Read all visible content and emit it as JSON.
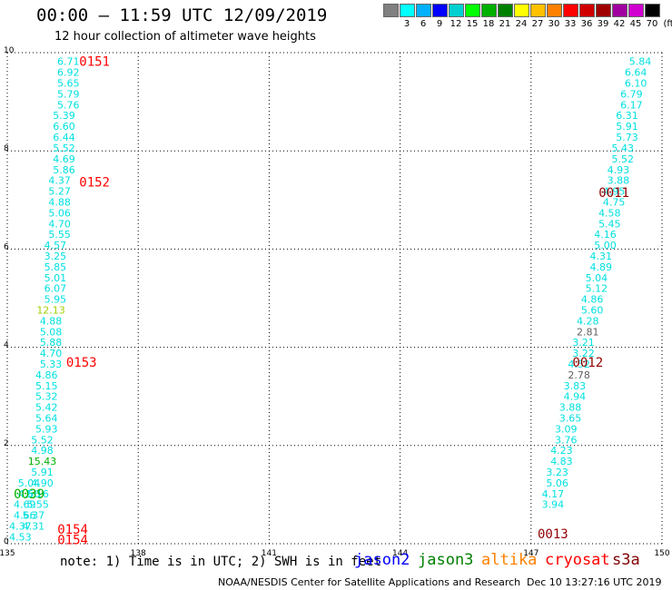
{
  "header": {
    "title": "00:00 – 11:59 UTC 12/09/2019",
    "subtitle": "12 hour collection of altimeter wave heights"
  },
  "color_legend": {
    "unit": "(ft)",
    "bins": [
      {
        "label": "",
        "color": "#808080"
      },
      {
        "label": "3",
        "color": "#00ffff"
      },
      {
        "label": "6",
        "color": "#00b0ff"
      },
      {
        "label": "9",
        "color": "#0000ff"
      },
      {
        "label": "12",
        "color": "#00d0d0"
      },
      {
        "label": "15",
        "color": "#00ff00"
      },
      {
        "label": "18",
        "color": "#00b000"
      },
      {
        "label": "21",
        "color": "#008000"
      },
      {
        "label": "24",
        "color": "#ffff00"
      },
      {
        "label": "27",
        "color": "#ffc000"
      },
      {
        "label": "30",
        "color": "#ff8000"
      },
      {
        "label": "33",
        "color": "#ff0000"
      },
      {
        "label": "36",
        "color": "#d00000"
      },
      {
        "label": "39",
        "color": "#a00000"
      },
      {
        "label": "42",
        "color": "#a000a0"
      },
      {
        "label": "45",
        "color": "#d000d0"
      },
      {
        "label": "70",
        "color": "#000000"
      }
    ]
  },
  "colors": {
    "cyan": "#00e0e0",
    "green": "#00b000",
    "yellowgreen": "#a0d000",
    "gray": "#606060",
    "red": "#ff0000",
    "darkred": "#900000",
    "jason2": "#0000ff",
    "jason3": "#008000",
    "altika": "#ff8000",
    "cryosat": "#ff0000",
    "s3a": "#800000",
    "grid": "#000000"
  },
  "chart_data": {
    "type": "scatter",
    "xlim": [
      135,
      150
    ],
    "ylim": [
      0,
      10
    ],
    "x_ticks": [
      "135",
      "138",
      "141",
      "144",
      "147",
      "150"
    ],
    "y_ticks": [
      "0",
      "2",
      "4",
      "6",
      "8",
      "10"
    ],
    "grid": true,
    "tracks": [
      {
        "time": "0151",
        "color": "red",
        "x": 137.0,
        "y": 9.82
      },
      {
        "time": "0152",
        "color": "red",
        "x": 137.0,
        "y": 7.37
      },
      {
        "time": "0153",
        "color": "red",
        "x": 136.7,
        "y": 3.7
      },
      {
        "time": "0039",
        "color": "green",
        "x": 135.5,
        "y": 1.02
      },
      {
        "time": "0154",
        "color": "red",
        "x": 136.5,
        "y": 0.3
      },
      {
        "time": "0154",
        "color": "red",
        "x": 136.5,
        "y": 0.08
      },
      {
        "time": "0011",
        "color": "darkred",
        "x": 148.9,
        "y": 7.15
      },
      {
        "time": "0012",
        "color": "darkred",
        "x": 148.3,
        "y": 3.7
      },
      {
        "time": "0013",
        "color": "darkred",
        "x": 147.5,
        "y": 0.2
      }
    ],
    "points": [
      {
        "x": 136.4,
        "y": 9.82,
        "v": "6.71",
        "c": "cyan"
      },
      {
        "x": 136.4,
        "y": 9.6,
        "v": "6.92",
        "c": "cyan"
      },
      {
        "x": 136.4,
        "y": 9.38,
        "v": "5.65",
        "c": "cyan"
      },
      {
        "x": 136.4,
        "y": 9.16,
        "v": "5.79",
        "c": "cyan"
      },
      {
        "x": 136.4,
        "y": 8.94,
        "v": "5.76",
        "c": "cyan"
      },
      {
        "x": 136.3,
        "y": 8.72,
        "v": "5.39",
        "c": "cyan"
      },
      {
        "x": 136.3,
        "y": 8.5,
        "v": "6.60",
        "c": "cyan"
      },
      {
        "x": 136.3,
        "y": 8.28,
        "v": "6.44",
        "c": "cyan"
      },
      {
        "x": 136.3,
        "y": 8.06,
        "v": "5.52",
        "c": "cyan"
      },
      {
        "x": 136.3,
        "y": 7.84,
        "v": "4.69",
        "c": "cyan"
      },
      {
        "x": 136.3,
        "y": 7.62,
        "v": "5.86",
        "c": "cyan"
      },
      {
        "x": 136.2,
        "y": 7.4,
        "v": "4.37",
        "c": "cyan"
      },
      {
        "x": 136.2,
        "y": 7.18,
        "v": "5.27",
        "c": "cyan"
      },
      {
        "x": 136.2,
        "y": 6.96,
        "v": "4.88",
        "c": "cyan"
      },
      {
        "x": 136.2,
        "y": 6.74,
        "v": "5.06",
        "c": "cyan"
      },
      {
        "x": 136.2,
        "y": 6.52,
        "v": "4.70",
        "c": "cyan"
      },
      {
        "x": 136.2,
        "y": 6.3,
        "v": "5.55",
        "c": "cyan"
      },
      {
        "x": 136.1,
        "y": 6.08,
        "v": "4.57",
        "c": "cyan"
      },
      {
        "x": 136.1,
        "y": 5.86,
        "v": "3.25",
        "c": "cyan"
      },
      {
        "x": 136.1,
        "y": 5.64,
        "v": "5.85",
        "c": "cyan"
      },
      {
        "x": 136.1,
        "y": 5.42,
        "v": "5.01",
        "c": "cyan"
      },
      {
        "x": 136.1,
        "y": 5.2,
        "v": "6.07",
        "c": "cyan"
      },
      {
        "x": 136.1,
        "y": 4.98,
        "v": "5.95",
        "c": "cyan"
      },
      {
        "x": 136.0,
        "y": 4.76,
        "v": "12.13",
        "c": "yellowgreen"
      },
      {
        "x": 136.0,
        "y": 4.54,
        "v": "4.88",
        "c": "cyan"
      },
      {
        "x": 136.0,
        "y": 4.32,
        "v": "5.08",
        "c": "cyan"
      },
      {
        "x": 136.0,
        "y": 4.1,
        "v": "5.88",
        "c": "cyan"
      },
      {
        "x": 136.0,
        "y": 3.88,
        "v": "4.70",
        "c": "cyan"
      },
      {
        "x": 136.0,
        "y": 3.66,
        "v": "5.33",
        "c": "cyan"
      },
      {
        "x": 135.9,
        "y": 3.44,
        "v": "4.86",
        "c": "cyan"
      },
      {
        "x": 135.9,
        "y": 3.22,
        "v": "5.15",
        "c": "cyan"
      },
      {
        "x": 135.9,
        "y": 3.0,
        "v": "5.32",
        "c": "cyan"
      },
      {
        "x": 135.9,
        "y": 2.78,
        "v": "5.42",
        "c": "cyan"
      },
      {
        "x": 135.9,
        "y": 2.56,
        "v": "5.64",
        "c": "cyan"
      },
      {
        "x": 135.9,
        "y": 2.34,
        "v": "5.93",
        "c": "cyan"
      },
      {
        "x": 135.8,
        "y": 2.12,
        "v": "5.52",
        "c": "cyan"
      },
      {
        "x": 135.8,
        "y": 1.9,
        "v": "4.98",
        "c": "cyan"
      },
      {
        "x": 135.8,
        "y": 1.68,
        "v": "15.43",
        "c": "green"
      },
      {
        "x": 135.8,
        "y": 1.46,
        "v": "5.91",
        "c": "cyan"
      },
      {
        "x": 135.8,
        "y": 1.24,
        "v": "4.90",
        "c": "cyan"
      },
      {
        "x": 135.7,
        "y": 1.02,
        "v": "5.16",
        "c": "cyan"
      },
      {
        "x": 135.7,
        "y": 0.8,
        "v": "5.55",
        "c": "cyan"
      },
      {
        "x": 135.6,
        "y": 0.58,
        "v": "5.37",
        "c": "cyan"
      },
      {
        "x": 135.6,
        "y": 0.36,
        "v": "4.31",
        "c": "cyan"
      },
      {
        "x": 135.5,
        "y": 1.24,
        "v": "5.04",
        "c": "cyan"
      },
      {
        "x": 135.5,
        "y": 1.02,
        "v": "4.66",
        "c": "cyan"
      },
      {
        "x": 135.4,
        "y": 0.8,
        "v": "4.69",
        "c": "cyan"
      },
      {
        "x": 135.4,
        "y": 0.58,
        "v": "4.66",
        "c": "cyan"
      },
      {
        "x": 135.3,
        "y": 0.36,
        "v": "4.37",
        "c": "cyan"
      },
      {
        "x": 135.3,
        "y": 0.14,
        "v": "4.53",
        "c": "cyan"
      },
      {
        "x": 149.5,
        "y": 9.82,
        "v": "5.84",
        "c": "cyan"
      },
      {
        "x": 149.4,
        "y": 9.6,
        "v": "6.64",
        "c": "cyan"
      },
      {
        "x": 149.4,
        "y": 9.38,
        "v": "6.10",
        "c": "cyan"
      },
      {
        "x": 149.3,
        "y": 9.16,
        "v": "6.79",
        "c": "cyan"
      },
      {
        "x": 149.3,
        "y": 8.94,
        "v": "6.17",
        "c": "cyan"
      },
      {
        "x": 149.2,
        "y": 8.72,
        "v": "6.31",
        "c": "cyan"
      },
      {
        "x": 149.2,
        "y": 8.5,
        "v": "5.91",
        "c": "cyan"
      },
      {
        "x": 149.2,
        "y": 8.28,
        "v": "5.73",
        "c": "cyan"
      },
      {
        "x": 149.1,
        "y": 8.06,
        "v": "5.43",
        "c": "cyan"
      },
      {
        "x": 149.1,
        "y": 7.84,
        "v": "5.52",
        "c": "cyan"
      },
      {
        "x": 149.0,
        "y": 7.62,
        "v": "4.93",
        "c": "cyan"
      },
      {
        "x": 149.0,
        "y": 7.4,
        "v": "3.88",
        "c": "cyan"
      },
      {
        "x": 148.9,
        "y": 7.18,
        "v": "4.95",
        "c": "cyan"
      },
      {
        "x": 148.9,
        "y": 6.96,
        "v": "4.75",
        "c": "cyan"
      },
      {
        "x": 148.8,
        "y": 6.74,
        "v": "4.58",
        "c": "cyan"
      },
      {
        "x": 148.8,
        "y": 6.52,
        "v": "5.45",
        "c": "cyan"
      },
      {
        "x": 148.7,
        "y": 6.3,
        "v": "4.16",
        "c": "cyan"
      },
      {
        "x": 148.7,
        "y": 6.08,
        "v": "5.00",
        "c": "cyan"
      },
      {
        "x": 148.6,
        "y": 5.86,
        "v": "4.31",
        "c": "cyan"
      },
      {
        "x": 148.6,
        "y": 5.64,
        "v": "4.89",
        "c": "cyan"
      },
      {
        "x": 148.5,
        "y": 5.42,
        "v": "5.04",
        "c": "cyan"
      },
      {
        "x": 148.5,
        "y": 5.2,
        "v": "5.12",
        "c": "cyan"
      },
      {
        "x": 148.4,
        "y": 4.98,
        "v": "4.86",
        "c": "cyan"
      },
      {
        "x": 148.4,
        "y": 4.76,
        "v": "5.60",
        "c": "cyan"
      },
      {
        "x": 148.3,
        "y": 4.54,
        "v": "4.28",
        "c": "cyan"
      },
      {
        "x": 148.3,
        "y": 4.32,
        "v": "2.81",
        "c": "gray"
      },
      {
        "x": 148.2,
        "y": 4.1,
        "v": "3.21",
        "c": "cyan"
      },
      {
        "x": 148.2,
        "y": 3.88,
        "v": "3.22",
        "c": "cyan"
      },
      {
        "x": 148.1,
        "y": 3.66,
        "v": "4.52",
        "c": "cyan"
      },
      {
        "x": 148.1,
        "y": 3.44,
        "v": "2.78",
        "c": "gray"
      },
      {
        "x": 148.0,
        "y": 3.22,
        "v": "3.83",
        "c": "cyan"
      },
      {
        "x": 148.0,
        "y": 3.0,
        "v": "4.94",
        "c": "cyan"
      },
      {
        "x": 147.9,
        "y": 2.78,
        "v": "3.88",
        "c": "cyan"
      },
      {
        "x": 147.9,
        "y": 2.56,
        "v": "3.65",
        "c": "cyan"
      },
      {
        "x": 147.8,
        "y": 2.34,
        "v": "3.09",
        "c": "cyan"
      },
      {
        "x": 147.8,
        "y": 2.12,
        "v": "3.76",
        "c": "cyan"
      },
      {
        "x": 147.7,
        "y": 1.9,
        "v": "4.23",
        "c": "cyan"
      },
      {
        "x": 147.7,
        "y": 1.68,
        "v": "4.83",
        "c": "cyan"
      },
      {
        "x": 147.6,
        "y": 1.46,
        "v": "3.23",
        "c": "cyan"
      },
      {
        "x": 147.6,
        "y": 1.24,
        "v": "5.06",
        "c": "cyan"
      },
      {
        "x": 147.5,
        "y": 1.02,
        "v": "4.17",
        "c": "cyan"
      },
      {
        "x": 147.5,
        "y": 0.8,
        "v": "3.94",
        "c": "cyan"
      }
    ]
  },
  "footer": {
    "note": "note: 1) Time is in UTC; 2) SWH is in feet",
    "satellites": [
      "jason2",
      "jason3",
      "altika",
      "cryosat",
      "s3a"
    ],
    "credit": "NOAA/NESDIS Center for Satellite Applications and Research",
    "timestamp": "Dec 10 13:27:16 UTC 2019"
  }
}
